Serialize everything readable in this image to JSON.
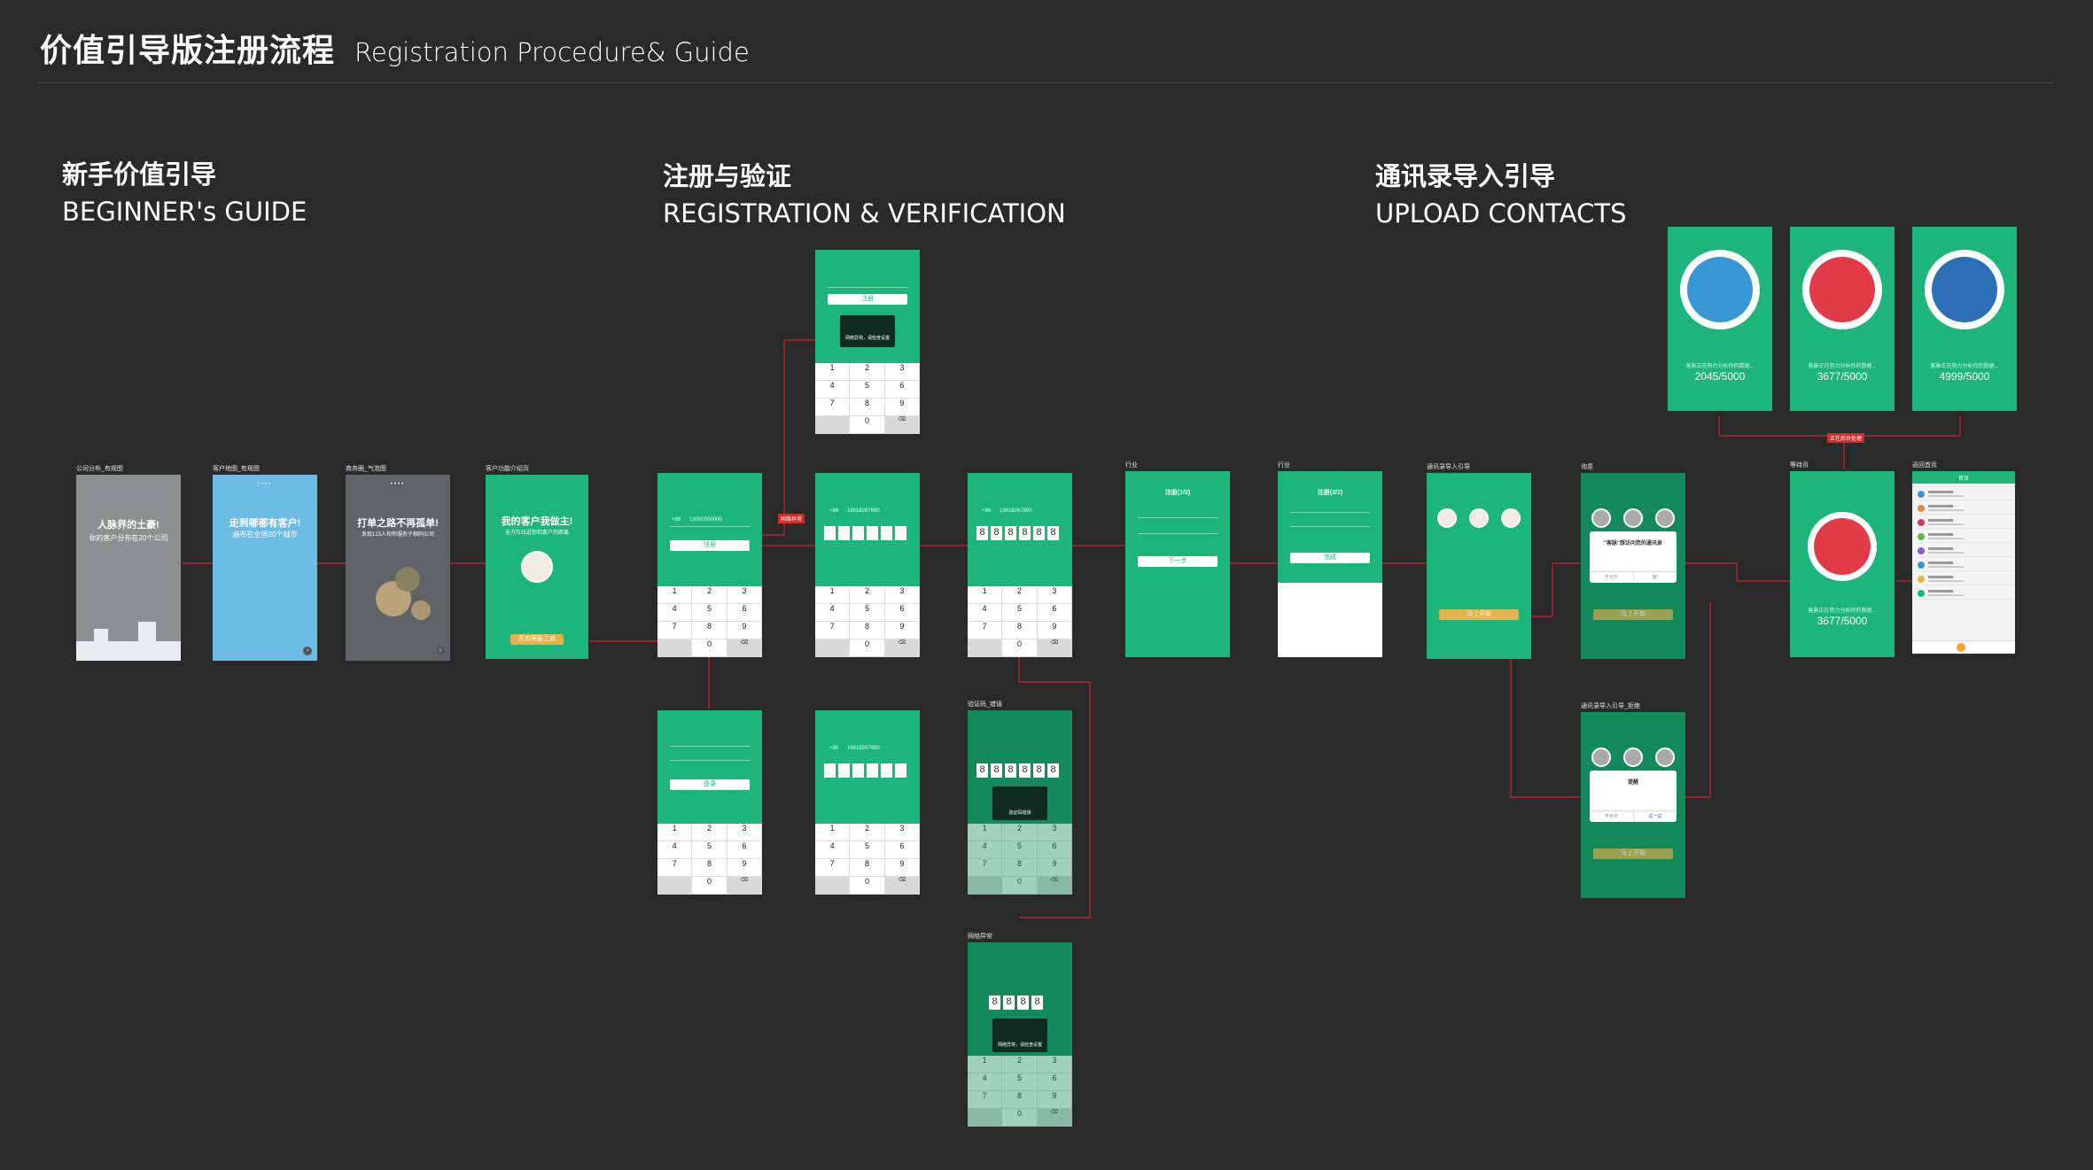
{
  "header": {
    "title_cn": "价值引导版注册流程",
    "title_en": "Registration Procedure& Guide"
  },
  "sections": {
    "guide": {
      "cn": "新手价值引导",
      "en": "BEGINNER's GUIDE"
    },
    "register": {
      "cn": "注册与验证",
      "en": "REGISTRATION & VERIFICATION"
    },
    "contacts": {
      "cn": "通讯录导入引导",
      "en": "UPLOAD CONTACTS"
    }
  },
  "captions": {
    "g1": "公司分布_有规图",
    "g2": "客户地图_有规图",
    "g3": "商务圈_气泡图",
    "g4": "客户功能介绍页",
    "ind1": "行业",
    "ind2": "行业",
    "c1": "通讯录导入引导",
    "c2": "询意",
    "c3": "等待页",
    "c4": "返回首页",
    "c5": "通讯录导入引导_拒绝",
    "r1": "验证码_错误",
    "r2": "网络异常"
  },
  "guide_screens": {
    "g1": {
      "title": "人脉界的土豪!",
      "sub": "你的客户分布在20个公司"
    },
    "g2": {
      "title": "走到哪都有客户!",
      "sub": "遍布在全国20个城市"
    },
    "g3": {
      "title": "打单之路不再孤单!",
      "sub": "发现123人和你服务于相同公司"
    },
    "g4": {
      "title": "我的客户我做主!",
      "sub": "全方位拉近你和客户的距离",
      "btn": "开启客脉之旅"
    }
  },
  "register_screens": {
    "phone_prefix": "+86",
    "phone_number": "13000000000",
    "phone_number2": "18618267890",
    "register_btn": "注册",
    "next_btn": "下一步",
    "login_btn": "登录",
    "code": [
      "8",
      "8",
      "8",
      "8",
      "8",
      "8"
    ],
    "code4": [
      "8",
      "8",
      "8",
      "8"
    ],
    "toast": "网络异常，请检查设置",
    "toast2": "验证码错误"
  },
  "industry": {
    "title1": "注册(1/2)",
    "title2": "注册(2/2)",
    "next": "下一步",
    "done": "完成"
  },
  "contacts_screens": {
    "upload_btn": "马上开始",
    "dialog_title": "\"客脉\"想访问您的通讯录",
    "deny": "不允许",
    "allow": "好",
    "reject_title": "提醒",
    "reject_retry": "试一试",
    "analyze": "客脉正在努力分析你的数据...",
    "stat_a": "2045/5000",
    "stat_b": "3677/5000",
    "stat_c": "4999/5000",
    "stat_wait": "3677/5000",
    "red_tag": "正在后台处理",
    "home_title": "首页"
  },
  "keypad": [
    "1",
    "2",
    "3",
    "4",
    "5",
    "6",
    "7",
    "8",
    "9",
    "",
    "0",
    "⌫"
  ],
  "colors": {
    "green": "#1eb57a",
    "dark_green": "#148a5a",
    "link_red": "#d12b2b",
    "bg": "#2b2a2a"
  }
}
